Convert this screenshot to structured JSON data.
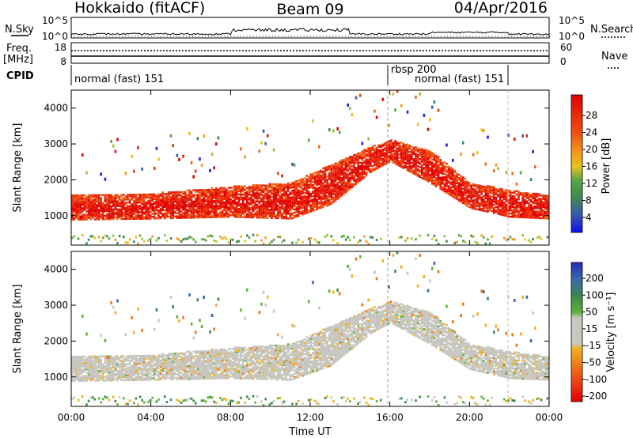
{
  "header": {
    "station": "Hokkaido (fitACF)",
    "beam": "Beam 09",
    "date": "04/Apr/2016"
  },
  "top_panel": {
    "left_label": "N.Sky",
    "right_label": "N.Search",
    "left_ticks": [
      "10^5",
      "10^0"
    ],
    "right_ticks": [
      "10^5",
      "10^0"
    ]
  },
  "freq_panel": {
    "left_label_line1": "Freq.",
    "left_label_line2": "[MHz]",
    "right_label": "Nave",
    "left_ticks": [
      "18",
      "8"
    ],
    "right_ticks": [
      "60",
      "0"
    ]
  },
  "cpid_panel": {
    "label": "CPID",
    "segments": [
      "normal (fast) 151",
      "rbsp 200",
      "normal (fast) 151"
    ]
  },
  "power_panel": {
    "ylabel": "Slant Range [km]",
    "colorbar_label": "Power [dB]",
    "colorbar_ticks": [
      "28",
      "24",
      "20",
      "16",
      "12",
      "8",
      "4"
    ]
  },
  "velocity_panel": {
    "ylabel": "Slant Range [km]",
    "colorbar_label": "Velocity [m s⁻¹]",
    "colorbar_ticks": [
      "200",
      "100",
      "50",
      "15",
      "-15",
      "-50",
      "-100",
      "-200"
    ]
  },
  "xaxis": {
    "label": "Time UT",
    "ticks": [
      "00:00",
      "04:00",
      "08:00",
      "12:00",
      "16:00",
      "20:00",
      "00:00"
    ]
  },
  "yaxis_ticks": [
    "4000",
    "3000",
    "2000",
    "1000"
  ],
  "colors": {
    "power_scale": [
      "#2020e0",
      "#3a5fa8",
      "#3f8a4f",
      "#5aa645",
      "#95c43a",
      "#e8c21a",
      "#f59a1a",
      "#f06a15",
      "#ec3f0e",
      "#e81c0c",
      "#e00000"
    ],
    "velocity_scale": [
      "#2a2ab8",
      "#3a68a8",
      "#3d8a4a",
      "#62b23c",
      "#c8c8c0",
      "#f0b020",
      "#f07818",
      "#ee4010",
      "#e00000"
    ],
    "ground_scatter": "#c6c6bf"
  },
  "chart_data": {
    "type": "heatmap",
    "title": "Hokkaido (fitACF) Beam 09 04/Apr/2016",
    "xlabel": "Time UT",
    "x_range_hours": [
      0,
      24
    ],
    "ylabel": "Slant Range [km]",
    "ylim_km": [
      180,
      4500
    ],
    "power_scale_db": [
      0,
      32
    ],
    "velocity_scale_ms": [
      -250,
      250
    ],
    "mode_segments": [
      {
        "name": "normal (fast) 151",
        "start_hour": 0,
        "end_hour": 16
      },
      {
        "name": "rbsp 200",
        "start_hour": 16,
        "end_hour": 22
      },
      {
        "name": "normal (fast) 151",
        "start_hour": 16.2,
        "end_hour": 22
      }
    ],
    "frequency_mhz": 10.5,
    "scatter_band_approx_km": [
      {
        "hour": 0,
        "low": 870,
        "high": 1550
      },
      {
        "hour": 4,
        "low": 900,
        "high": 1600
      },
      {
        "hour": 8,
        "low": 950,
        "high": 1800
      },
      {
        "hour": 11,
        "low": 900,
        "high": 1900
      },
      {
        "hour": 13,
        "low": 1300,
        "high": 2400
      },
      {
        "hour": 15,
        "low": 2200,
        "high": 2900
      },
      {
        "hour": 16,
        "low": 2500,
        "high": 3100
      },
      {
        "hour": 18,
        "low": 1900,
        "high": 2800
      },
      {
        "hour": 20,
        "low": 1200,
        "high": 1900
      },
      {
        "hour": 22,
        "low": 950,
        "high": 1700
      },
      {
        "hour": 24,
        "low": 900,
        "high": 1550
      }
    ]
  }
}
